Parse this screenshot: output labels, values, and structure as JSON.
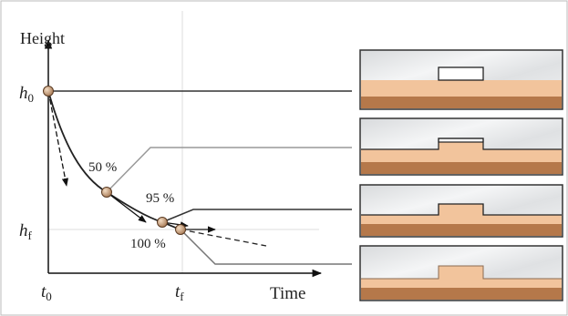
{
  "axes": {
    "y_label": "Height",
    "x_label": "Time",
    "h0": {
      "base": "h",
      "sub": "0"
    },
    "hf": {
      "base": "h",
      "sub": "f"
    },
    "t0": {
      "base": "t",
      "sub": "0"
    },
    "tf": {
      "base": "t",
      "sub": "f"
    }
  },
  "points": [
    {
      "label": "50 %"
    },
    {
      "label": "95 %"
    },
    {
      "label": "100 %"
    }
  ]
}
